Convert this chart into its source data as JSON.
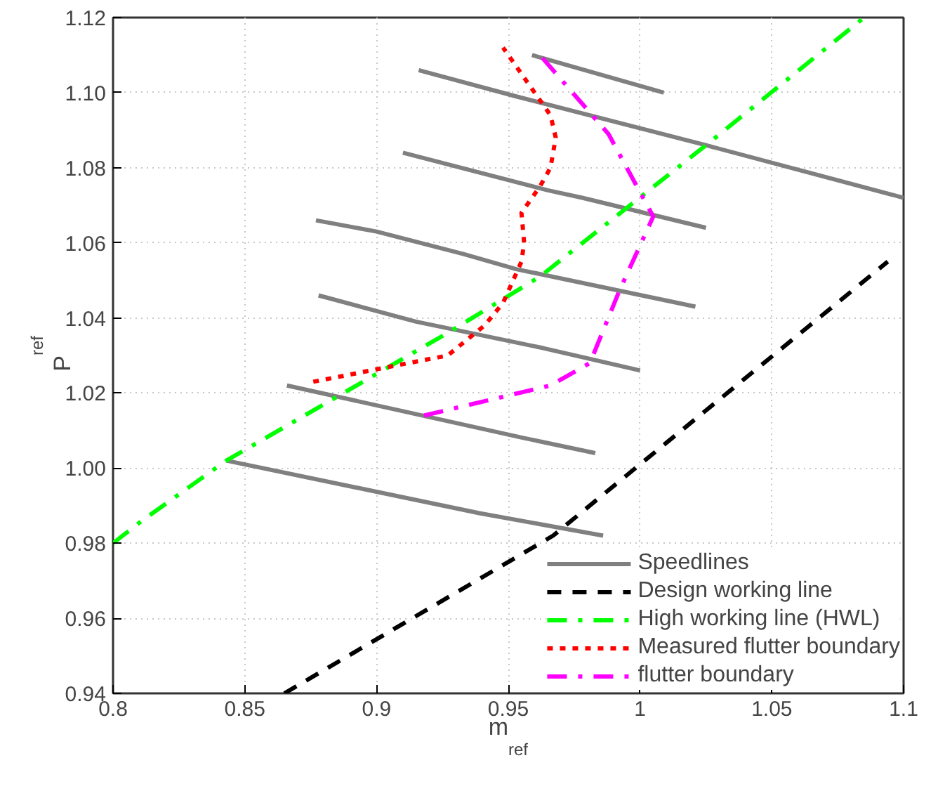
{
  "chart_data": {
    "type": "line",
    "xlabel": "m$_{ref}$",
    "ylabel": "P$_{ref}$",
    "xlim": [
      0.8,
      1.1
    ],
    "ylim": [
      0.94,
      1.12
    ],
    "xticks": [
      0.8,
      0.85,
      0.9,
      0.95,
      {
        "value": 1,
        "label": "1"
      },
      1.05,
      1.1
    ],
    "yticks": [
      0.94,
      0.96,
      0.98,
      {
        "value": 1,
        "label": "1.00"
      },
      1.02,
      1.04,
      1.06,
      1.08,
      {
        "value": 1.1,
        "label": "1.10"
      },
      1.12
    ],
    "grid": true,
    "legend": "bottom right",
    "marker": "none",
    "series": [
      {
        "name": "Speedlines",
        "color": "#808080",
        "line_style": "solid",
        "x": [
          0.843,
          0.939,
          0.986,
          null,
          0.866,
          0.956,
          0.983,
          null,
          0.878,
          0.915,
          0.963,
          1.0,
          null,
          0.877,
          0.9,
          0.933,
          0.953,
          1.021,
          null,
          0.91,
          0.965,
          0.978,
          1.025,
          null,
          0.916,
          0.953,
          1.025,
          1.1,
          null,
          0.959,
          1.009
        ],
        "values": [
          1.002,
          0.988,
          0.982,
          null,
          1.022,
          1.008,
          1.004,
          null,
          1.046,
          1.039,
          1.032,
          1.026,
          null,
          1.066,
          1.063,
          1.057,
          1.053,
          1.043,
          null,
          1.084,
          1.074,
          1.072,
          1.064,
          null,
          1.106,
          1.099,
          1.086,
          1.072,
          null,
          1.11,
          1.1
        ]
      },
      {
        "name": "Design working line",
        "color": "#000000",
        "line_style": "dashed",
        "x": [
          0.865,
          0.967,
          1.0,
          1.094
        ],
        "values": [
          0.94,
          0.982,
          1.001,
          1.055
        ]
      },
      {
        "name": "High working line (HWL)",
        "color": "#00ff00",
        "line_style": "dashdot",
        "x": [
          0.8,
          0.811,
          0.843,
          0.927,
          0.962,
          1.025,
          1.085
        ],
        "values": [
          0.98,
          0.986,
          1.002,
          1.036,
          1.051,
          1.086,
          1.12
        ]
      },
      {
        "name": "Measured flutter boundary",
        "color": "#ff0000",
        "line_style": "dotted",
        "x": [
          0.876,
          0.905,
          0.927,
          0.941,
          0.948,
          0.955,
          0.956,
          0.955,
          0.962,
          0.966,
          0.968,
          0.966,
          0.953,
          0.948
        ],
        "values": [
          1.023,
          1.027,
          1.03,
          1.038,
          1.044,
          1.055,
          1.06,
          1.068,
          1.075,
          1.08,
          1.088,
          1.094,
          1.107,
          1.112
        ]
      },
      {
        "name": "flutter boundary",
        "color": "#ff00ff",
        "line_style": "dashdot",
        "x": [
          0.918,
          0.966,
          0.981,
          0.992,
          1.005,
          0.988,
          0.962
        ],
        "values": [
          1.014,
          1.022,
          1.028,
          1.047,
          1.067,
          1.089,
          1.11
        ]
      }
    ]
  }
}
